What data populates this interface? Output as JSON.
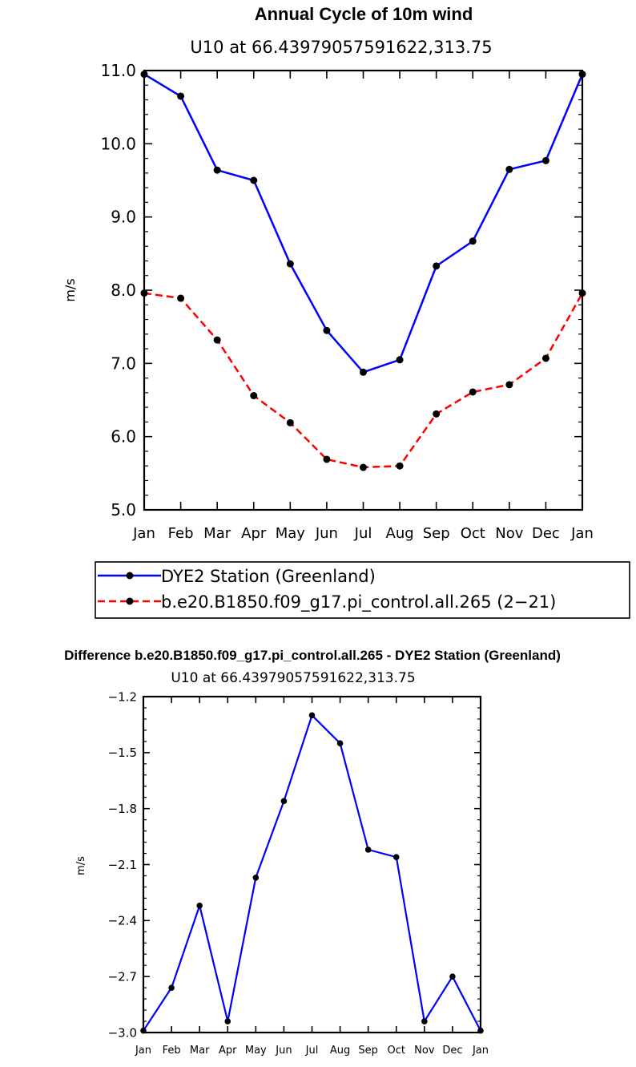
{
  "chart_data": [
    {
      "type": "line",
      "title": "Annual Cycle of 10m wind",
      "subtitle": "U10 at 66.43979057591622,313.75",
      "xlabel": "",
      "ylabel": "m/s",
      "categories": [
        "Jan",
        "Feb",
        "Mar",
        "Apr",
        "May",
        "Jun",
        "Jul",
        "Aug",
        "Sep",
        "Oct",
        "Nov",
        "Dec",
        "Jan"
      ],
      "ylim": [
        5.0,
        11.0
      ],
      "yticks": [
        "5.0",
        "6.0",
        "7.0",
        "8.0",
        "9.0",
        "10.0",
        "11.0"
      ],
      "series": [
        {
          "name": "DYE2 Station (Greenland)",
          "color": "#0000ff",
          "dash": "solid",
          "values": [
            10.95,
            10.65,
            9.64,
            9.5,
            8.36,
            7.45,
            6.88,
            7.05,
            8.33,
            8.67,
            9.65,
            9.77,
            10.95
          ]
        },
        {
          "name": "b.e20.B1850.f09_g17.pi_control.all.265 (2-21)",
          "color": "#ff0000",
          "dash": "dashed",
          "values": [
            7.96,
            7.89,
            7.32,
            6.56,
            6.19,
            5.69,
            5.58,
            5.6,
            6.31,
            6.61,
            6.71,
            7.07,
            7.96
          ]
        }
      ],
      "legend_placement": "below"
    },
    {
      "type": "line",
      "title": "Difference b.e20.B1850.f09_g17.pi_control.all.265 - DYE2 Station (Greenland)",
      "subtitle": "U10 at 66.43979057591622,313.75",
      "xlabel": "",
      "ylabel": "m/s",
      "categories": [
        "Jan",
        "Feb",
        "Mar",
        "Apr",
        "May",
        "Jun",
        "Jul",
        "Aug",
        "Sep",
        "Oct",
        "Nov",
        "Dec",
        "Jan"
      ],
      "ylim": [
        -3.0,
        -1.2
      ],
      "yticks": [
        "-3.0",
        "-2.7",
        "-2.4",
        "-2.1",
        "-1.8",
        "-1.5",
        "-1.2"
      ],
      "series": [
        {
          "color": "#0000ff",
          "dash": "solid",
          "values": [
            -2.99,
            -2.76,
            -2.32,
            -2.94,
            -2.17,
            -1.76,
            -1.3,
            -1.45,
            -2.02,
            -2.06,
            -2.94,
            -2.7,
            -2.99
          ]
        }
      ]
    }
  ],
  "legend": {
    "items": [
      {
        "label": "DYE2 Station (Greenland)"
      },
      {
        "label": "b.e20.B1850.f09_g17.pi_control.all.265 (2−21)"
      }
    ]
  }
}
